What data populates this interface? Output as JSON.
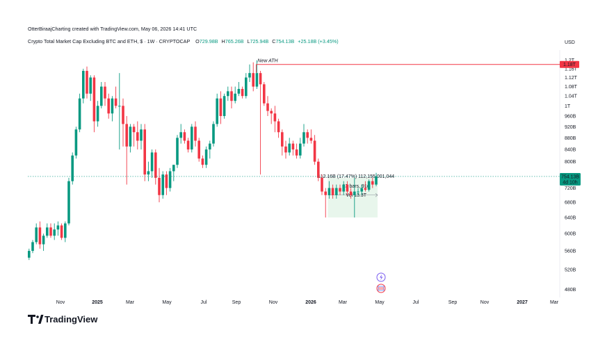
{
  "header": {
    "credit": "OtterBiraajCharting created with TradingView.com, May 06, 2026 14:41 UTC",
    "symbol": "Crypto Total Market Cap Excluding BTC and ETH, $ · 1W · CRYPTOCAP",
    "ohlc": {
      "o_label": "O",
      "o_value": "729.98B",
      "h_label": "H",
      "h_value": "765.26B",
      "l_label": "L",
      "l_value": "725.94B",
      "c_label": "C",
      "c_value": "754.13B",
      "change": "+25.18B (+3.45%)"
    }
  },
  "colors": {
    "up": "#089981",
    "down": "#f23645",
    "ath_line": "#f23645",
    "ath_label": "#f7a600",
    "measure_fill": "#e6f5ea",
    "badge_bg": "#089981"
  },
  "chart_data": {
    "type": "candlestick",
    "currency": "USD",
    "y_scale": "log",
    "grid": false,
    "ylim": [
      0.465,
      1.25
    ],
    "y_unit": "T (trillions USD)",
    "y_ticks": [
      {
        "v": 1.2,
        "label": "1.2T"
      },
      {
        "v": 1.16,
        "label": "1.16T"
      },
      {
        "v": 1.12,
        "label": "1.12T"
      },
      {
        "v": 1.08,
        "label": "1.08T"
      },
      {
        "v": 1.04,
        "label": "1.04T"
      },
      {
        "v": 1.0,
        "label": "1T"
      },
      {
        "v": 0.96,
        "label": "960B"
      },
      {
        "v": 0.92,
        "label": "920B"
      },
      {
        "v": 0.88,
        "label": "880B"
      },
      {
        "v": 0.84,
        "label": "840B"
      },
      {
        "v": 0.8,
        "label": "800B"
      },
      {
        "v": 0.72,
        "label": "720B"
      },
      {
        "v": 0.68,
        "label": "680B"
      },
      {
        "v": 0.64,
        "label": "640B"
      },
      {
        "v": 0.6,
        "label": "600B"
      },
      {
        "v": 0.56,
        "label": "560B"
      },
      {
        "v": 0.52,
        "label": "520B"
      },
      {
        "v": 0.48,
        "label": "480B"
      }
    ],
    "x_ticks": [
      "Nov",
      "2025",
      "Mar",
      "May",
      "Jul",
      "Sep",
      "Nov",
      "2026",
      "Mar",
      "May",
      "Jul",
      "Sep",
      "Nov",
      "2027",
      "Mar"
    ],
    "x_tick_bold": [
      1,
      7,
      13
    ],
    "candles": [
      [
        0.545,
        0.565,
        0.54,
        0.56
      ],
      [
        0.56,
        0.585,
        0.555,
        0.58
      ],
      [
        0.58,
        0.625,
        0.575,
        0.615
      ],
      [
        0.615,
        0.63,
        0.565,
        0.575
      ],
      [
        0.575,
        0.6,
        0.56,
        0.595
      ],
      [
        0.595,
        0.625,
        0.59,
        0.615
      ],
      [
        0.615,
        0.625,
        0.59,
        0.595
      ],
      [
        0.595,
        0.625,
        0.585,
        0.61
      ],
      [
        0.61,
        0.63,
        0.595,
        0.62
      ],
      [
        0.62,
        0.625,
        0.585,
        0.59
      ],
      [
        0.59,
        0.63,
        0.58,
        0.625
      ],
      [
        0.625,
        0.75,
        0.62,
        0.74
      ],
      [
        0.74,
        0.83,
        0.73,
        0.82
      ],
      [
        0.82,
        0.92,
        0.81,
        0.91
      ],
      [
        0.91,
        1.05,
        0.9,
        1.03
      ],
      [
        1.03,
        1.16,
        1.01,
        1.15
      ],
      [
        1.15,
        1.17,
        1.03,
        1.05
      ],
      [
        1.05,
        1.13,
        1.02,
        1.12
      ],
      [
        1.12,
        1.13,
        0.9,
        0.94
      ],
      [
        0.94,
        1.02,
        0.92,
        1.0
      ],
      [
        1.0,
        1.1,
        0.99,
        1.08
      ],
      [
        1.08,
        1.1,
        1.0,
        1.03
      ],
      [
        1.03,
        1.05,
        0.95,
        0.97
      ],
      [
        0.97,
        1.04,
        0.94,
        1.03
      ],
      [
        1.03,
        1.08,
        0.99,
        1.0
      ],
      [
        1.0,
        1.14,
        0.84,
        1.0
      ],
      [
        1.0,
        1.03,
        0.85,
        0.93
      ],
      [
        0.93,
        0.96,
        0.73,
        0.85
      ],
      [
        0.85,
        0.93,
        0.83,
        0.92
      ],
      [
        0.92,
        0.93,
        0.85,
        0.9
      ],
      [
        0.9,
        0.94,
        0.84,
        0.87
      ],
      [
        0.87,
        0.93,
        0.84,
        0.91
      ],
      [
        0.91,
        0.93,
        0.74,
        0.76
      ],
      [
        0.76,
        0.8,
        0.74,
        0.77
      ],
      [
        0.77,
        0.84,
        0.75,
        0.83
      ],
      [
        0.83,
        0.84,
        0.73,
        0.75
      ],
      [
        0.75,
        0.78,
        0.68,
        0.7
      ],
      [
        0.7,
        0.77,
        0.69,
        0.76
      ],
      [
        0.76,
        0.77,
        0.7,
        0.72
      ],
      [
        0.72,
        0.78,
        0.71,
        0.77
      ],
      [
        0.77,
        0.79,
        0.74,
        0.79
      ],
      [
        0.79,
        0.89,
        0.78,
        0.88
      ],
      [
        0.88,
        0.93,
        0.86,
        0.9
      ],
      [
        0.9,
        0.91,
        0.86,
        0.87
      ],
      [
        0.87,
        0.88,
        0.83,
        0.84
      ],
      [
        0.84,
        0.93,
        0.83,
        0.92
      ],
      [
        0.92,
        0.94,
        0.85,
        0.87
      ],
      [
        0.87,
        0.88,
        0.8,
        0.81
      ],
      [
        0.81,
        0.82,
        0.78,
        0.79
      ],
      [
        0.79,
        0.85,
        0.78,
        0.84
      ],
      [
        0.84,
        0.87,
        0.81,
        0.86
      ],
      [
        0.86,
        0.94,
        0.85,
        0.93
      ],
      [
        0.93,
        1.05,
        0.92,
        1.03
      ],
      [
        1.03,
        1.06,
        0.93,
        0.96
      ],
      [
        0.96,
        1.05,
        0.95,
        1.04
      ],
      [
        1.04,
        1.08,
        1.02,
        1.06
      ],
      [
        1.06,
        1.08,
        0.99,
        1.02
      ],
      [
        1.02,
        1.08,
        1.01,
        1.05
      ],
      [
        1.05,
        1.1,
        1.04,
        1.07
      ],
      [
        1.07,
        1.08,
        1.03,
        1.04
      ],
      [
        1.04,
        1.14,
        1.03,
        1.12
      ],
      [
        1.12,
        1.18,
        1.1,
        1.14
      ],
      [
        1.14,
        1.19,
        1.06,
        1.08
      ],
      [
        1.08,
        1.2,
        1.07,
        1.14
      ],
      [
        1.14,
        1.15,
        0.76,
        1.09
      ],
      [
        1.09,
        1.1,
        1.0,
        1.01
      ],
      [
        1.01,
        1.04,
        0.96,
        0.98
      ],
      [
        0.98,
        0.99,
        0.93,
        0.97
      ],
      [
        0.97,
        1.0,
        0.9,
        0.94
      ],
      [
        0.94,
        0.95,
        0.88,
        0.9
      ],
      [
        0.9,
        0.91,
        0.82,
        0.85
      ],
      [
        0.85,
        0.87,
        0.81,
        0.83
      ],
      [
        0.83,
        0.88,
        0.82,
        0.86
      ],
      [
        0.86,
        0.87,
        0.82,
        0.84
      ],
      [
        0.84,
        0.86,
        0.81,
        0.82
      ],
      [
        0.82,
        0.88,
        0.81,
        0.86
      ],
      [
        0.86,
        0.93,
        0.85,
        0.9
      ],
      [
        0.9,
        0.91,
        0.86,
        0.88
      ],
      [
        0.88,
        0.91,
        0.86,
        0.87
      ],
      [
        0.87,
        0.89,
        0.79,
        0.8
      ],
      [
        0.8,
        0.81,
        0.74,
        0.75
      ],
      [
        0.75,
        0.76,
        0.7,
        0.71
      ],
      [
        0.71,
        0.72,
        0.64,
        0.7
      ],
      [
        0.7,
        0.74,
        0.69,
        0.72
      ],
      [
        0.72,
        0.73,
        0.69,
        0.7
      ],
      [
        0.7,
        0.73,
        0.69,
        0.72
      ],
      [
        0.72,
        0.73,
        0.7,
        0.71
      ],
      [
        0.71,
        0.74,
        0.7,
        0.73
      ],
      [
        0.73,
        0.74,
        0.7,
        0.71
      ],
      [
        0.71,
        0.72,
        0.69,
        0.7
      ],
      [
        0.7,
        0.75,
        0.64,
        0.71
      ],
      [
        0.71,
        0.72,
        0.7,
        0.71
      ],
      [
        0.71,
        0.73,
        0.7,
        0.72
      ],
      [
        0.72,
        0.74,
        0.71,
        0.715
      ],
      [
        0.715,
        0.745,
        0.71,
        0.74
      ],
      [
        0.74,
        0.75,
        0.72,
        0.73
      ],
      [
        0.73,
        0.765,
        0.725,
        0.754
      ]
    ],
    "ath": {
      "value": 1.18,
      "label": "New ATH",
      "price_label": "1.18T",
      "start_candle": 63
    },
    "current_price": {
      "value": 0.754,
      "label": "754.13B",
      "countdown": "4d 10h"
    },
    "measure": {
      "start_candle": 83,
      "end_candle": 96,
      "low": 0.64,
      "high": 0.75,
      "line1": "112.16B (17.47%) 112,155,001,044",
      "line2": "13 bars, 91d",
      "line3": "Vol 13.3T"
    }
  },
  "footer": {
    "brand": "TradingView"
  }
}
